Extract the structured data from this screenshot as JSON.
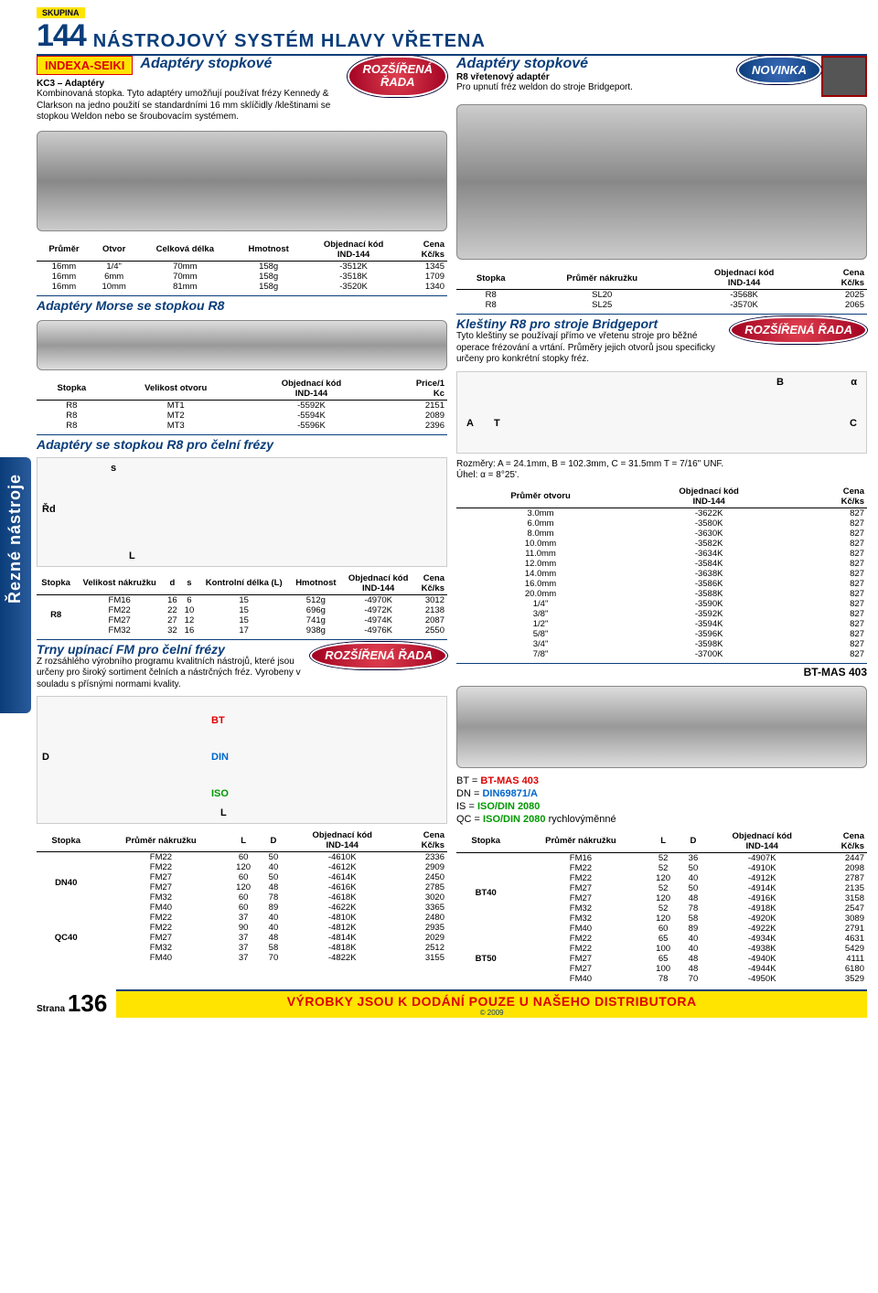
{
  "sidebar_label": "Řezné nástroje",
  "header": {
    "skupina": "SKUPINA",
    "num": "144",
    "title": "NÁSTROJOVÝ SYSTÉM HLAVY VŘETENA"
  },
  "badges": {
    "rozsirena": "ROZŠÍŘENÁ ŘADA",
    "novinka": "NOVINKA"
  },
  "left1": {
    "brand": "INDEXA-SEIKI",
    "title": "Adaptéry stopkové",
    "sub": "KC3 – Adaptéry",
    "desc": "Kombinovaná stopka. Tyto adaptéry umožňují používat frézy Kennedy & Clarkson na jedno použití se standardními 16 mm sklíčidly /kleštinami se stopkou Weldon nebo se šroubovacím systémem."
  },
  "right1": {
    "title": "Adaptéry stopkové",
    "sub": "R8 vřetenový adaptér",
    "desc": "Pro upnutí fréz weldon do stroje Bridgeport."
  },
  "table1": {
    "headers": [
      "Průměr",
      "Otvor",
      "Celková délka",
      "Hmotnost",
      "Objednací kód IND-144",
      "Cena Kč/ks"
    ],
    "rows": [
      [
        "16mm",
        "1/4\"",
        "70mm",
        "158g",
        "-3512K",
        "1345"
      ],
      [
        "16mm",
        "6mm",
        "70mm",
        "158g",
        "-3518K",
        "1709"
      ],
      [
        "16mm",
        "10mm",
        "81mm",
        "158g",
        "-3520K",
        "1340"
      ]
    ]
  },
  "table_r8adapter": {
    "headers": [
      "Stopka",
      "Průměr nákružku",
      "Objednací kód IND-144",
      "Cena Kč/ks"
    ],
    "rows": [
      [
        "R8",
        "SL20",
        "-3568K",
        "2025"
      ],
      [
        "R8",
        "SL25",
        "-3570K",
        "2065"
      ]
    ]
  },
  "morse": {
    "title": "Adaptéry Morse se stopkou R8",
    "headers": [
      "Stopka",
      "Velikost otvoru",
      "Objednací kód IND-144",
      "Price/1 Kc"
    ],
    "rows": [
      [
        "R8",
        "MT1",
        "-5592K",
        "2151"
      ],
      [
        "R8",
        "MT2",
        "-5594K",
        "2089"
      ],
      [
        "R8",
        "MT3",
        "-5596K",
        "2396"
      ]
    ]
  },
  "celni": {
    "title": "Adaptéry se stopkou R8 pro čelní frézy",
    "headers": [
      "Stopka",
      "Velikost nákružku",
      "d",
      "s",
      "Kontrolní délka (L)",
      "Hmotnost",
      "Objednací kód IND-144",
      "Cena Kč/ks"
    ],
    "groupLabel": "R8",
    "rows": [
      [
        "FM16",
        "16",
        "6",
        "15",
        "512g",
        "-4970K",
        "3012"
      ],
      [
        "FM22",
        "22",
        "10",
        "15",
        "696g",
        "-4972K",
        "2138"
      ],
      [
        "FM27",
        "27",
        "12",
        "15",
        "741g",
        "-4974K",
        "2087"
      ],
      [
        "FM32",
        "32",
        "16",
        "17",
        "938g",
        "-4976K",
        "2550"
      ]
    ]
  },
  "klestiny": {
    "title": "Kleštiny R8 pro stroje Bridgeport",
    "desc": "Tyto kleštiny se používají přímo ve vřetenu stroje pro běžné operace frézování a vrtání. Průměry jejich otvorů jsou specificky určeny pro konkrétní stopky fréz.",
    "dims": "Rozměry: A = 24.1mm, B = 102.3mm, C = 31.5mm T = 7/16\" UNF.",
    "angle": "Úhel: α = 8°25'.",
    "headers": [
      "Průměr otvoru",
      "Objednací kód IND-144",
      "Cena Kč/ks"
    ],
    "rows": [
      [
        "3.0mm",
        "-3622K",
        "827"
      ],
      [
        "6.0mm",
        "-3580K",
        "827"
      ],
      [
        "8.0mm",
        "-3630K",
        "827"
      ],
      [
        "10.0mm",
        "-3582K",
        "827"
      ],
      [
        "11.0mm",
        "-3634K",
        "827"
      ],
      [
        "12.0mm",
        "-3584K",
        "827"
      ],
      [
        "14.0mm",
        "-3638K",
        "827"
      ],
      [
        "16.0mm",
        "-3586K",
        "827"
      ],
      [
        "20.0mm",
        "-3588K",
        "827"
      ],
      [
        "1/4\"",
        "-3590K",
        "827"
      ],
      [
        "3/8\"",
        "-3592K",
        "827"
      ],
      [
        "1/2\"",
        "-3594K",
        "827"
      ],
      [
        "5/8\"",
        "-3596K",
        "827"
      ],
      [
        "3/4\"",
        "-3598K",
        "827"
      ],
      [
        "7/8\"",
        "-3700K",
        "827"
      ]
    ]
  },
  "trny": {
    "title": "Trny upínací FM pro čelní frézy",
    "desc": "Z rozsáhlého výrobního programu kvalitních nástrojů, které jsou určeny pro široký sortiment čelních a nástrčných fréz. Vyrobeny v souladu s přísnými normami kvality.",
    "btmas": "BT-MAS 403",
    "legend": {
      "bt": "BT = BT-MAS 403",
      "dn": "DN = DIN69871/A",
      "is": "IS = ISO/DIN 2080",
      "qc1": "QC = ",
      "qc2": "ISO/DIN 2080",
      "qc3": " rychlovýměnné"
    }
  },
  "table_dn_qc": {
    "headers": [
      "Stopka",
      "Průměr nákružku",
      "L",
      "D",
      "Objednací kód IND-144",
      "Cena Kč/ks"
    ],
    "groups": [
      {
        "label": "DN40",
        "rows": [
          [
            "FM22",
            "60",
            "50",
            "-4610K",
            "2336"
          ],
          [
            "FM22",
            "120",
            "40",
            "-4612K",
            "2909"
          ],
          [
            "FM27",
            "60",
            "50",
            "-4614K",
            "2450"
          ],
          [
            "FM27",
            "120",
            "48",
            "-4616K",
            "2785"
          ],
          [
            "FM32",
            "60",
            "78",
            "-4618K",
            "3020"
          ],
          [
            "FM40",
            "60",
            "89",
            "-4622K",
            "3365"
          ]
        ]
      },
      {
        "label": "QC40",
        "rows": [
          [
            "FM22",
            "37",
            "40",
            "-4810K",
            "2480"
          ],
          [
            "FM22",
            "90",
            "40",
            "-4812K",
            "2935"
          ],
          [
            "FM27",
            "37",
            "48",
            "-4814K",
            "2029"
          ],
          [
            "FM32",
            "37",
            "58",
            "-4818K",
            "2512"
          ],
          [
            "FM40",
            "37",
            "70",
            "-4822K",
            "3155"
          ]
        ]
      }
    ]
  },
  "table_bt": {
    "headers": [
      "Stopka",
      "Průměr nákružku",
      "L",
      "D",
      "Objednací kód IND-144",
      "Cena Kč/ks"
    ],
    "groups": [
      {
        "label": "BT40",
        "rows": [
          [
            "FM16",
            "52",
            "36",
            "-4907K",
            "2447"
          ],
          [
            "FM22",
            "52",
            "50",
            "-4910K",
            "2098"
          ],
          [
            "FM22",
            "120",
            "40",
            "-4912K",
            "2787"
          ],
          [
            "FM27",
            "52",
            "50",
            "-4914K",
            "2135"
          ],
          [
            "FM27",
            "120",
            "48",
            "-4916K",
            "3158"
          ],
          [
            "FM32",
            "52",
            "78",
            "-4918K",
            "2547"
          ],
          [
            "FM32",
            "120",
            "58",
            "-4920K",
            "3089"
          ],
          [
            "FM40",
            "60",
            "89",
            "-4922K",
            "2791"
          ]
        ]
      },
      {
        "label": "BT50",
        "rows": [
          [
            "FM22",
            "65",
            "40",
            "-4934K",
            "4631"
          ],
          [
            "FM22",
            "100",
            "40",
            "-4938K",
            "5429"
          ],
          [
            "FM27",
            "65",
            "48",
            "-4940K",
            "4111"
          ],
          [
            "FM27",
            "100",
            "48",
            "-4944K",
            "6180"
          ],
          [
            "FM40",
            "78",
            "70",
            "-4950K",
            "3529"
          ]
        ]
      }
    ]
  },
  "footer": {
    "page_label": "Strana",
    "page_num": "136",
    "banner": "VÝROBKY JSOU K DODÁNÍ POUZE U NAŠEHO DISTRIBUTORA",
    "year": "© 2009"
  }
}
